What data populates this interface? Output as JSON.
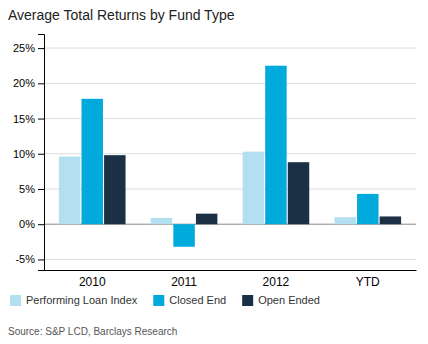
{
  "chart_data": {
    "type": "bar",
    "title": "Average Total Returns by Fund Type",
    "categories": [
      "2010",
      "2011",
      "2012",
      "YTD"
    ],
    "series": [
      {
        "name": "Performing Loan Index",
        "color": "#b3dff0",
        "values": [
          9.6,
          0.9,
          10.3,
          1.0
        ]
      },
      {
        "name": "Closed End",
        "color": "#00aadd",
        "values": [
          17.8,
          -3.2,
          22.5,
          4.3
        ]
      },
      {
        "name": "Open Ended",
        "color": "#1b2f45",
        "values": [
          9.8,
          1.5,
          8.8,
          1.1
        ]
      }
    ],
    "ylim": [
      -6.5,
      27
    ],
    "yticks": [
      {
        "value": -5,
        "label": "-5%"
      },
      {
        "value": 0,
        "label": "0%"
      },
      {
        "value": 5,
        "label": "5%"
      },
      {
        "value": 10,
        "label": "10%"
      },
      {
        "value": 15,
        "label": "15%"
      },
      {
        "value": 20,
        "label": "20%"
      },
      {
        "value": 25,
        "label": "25%"
      }
    ],
    "grid": true,
    "legend": "bottom",
    "source": "Source: S&P LCD, Barclays Research"
  }
}
